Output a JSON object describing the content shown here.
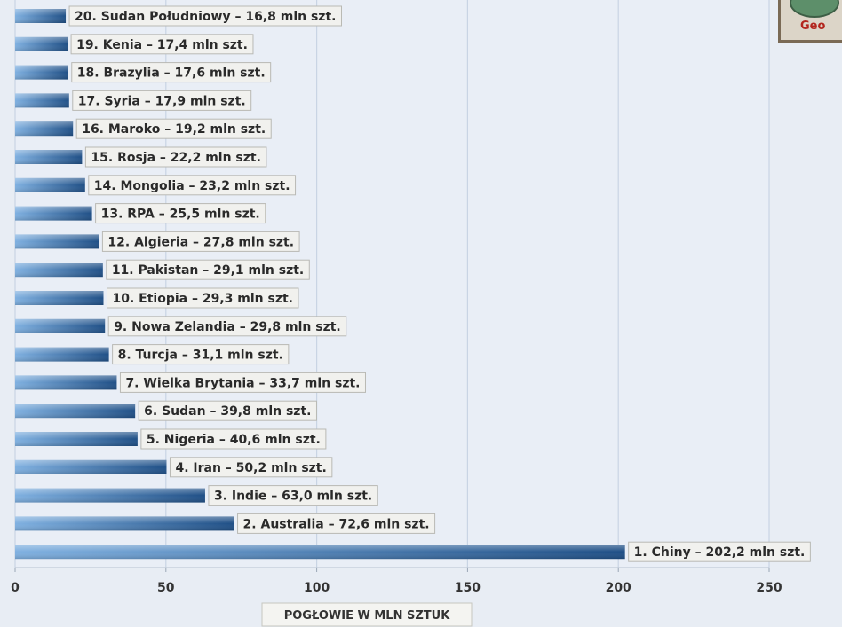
{
  "chart_data": {
    "type": "bar",
    "orientation": "horizontal",
    "categories": [
      "20. Sudan Południowy",
      "19. Kenia",
      "18. Brazylia",
      "17. Syria",
      "16. Maroko",
      "15. Rosja",
      "14. Mongolia",
      "13. RPA",
      "12. Algieria",
      "11. Pakistan",
      "10. Etiopia",
      "9. Nowa Zelandia",
      "8. Turcja",
      "7. Wielka Brytania",
      "6. Sudan",
      "5. Nigeria",
      "4. Iran",
      "3. Indie",
      "2. Australia",
      "1. Chiny"
    ],
    "values": [
      16.8,
      17.4,
      17.6,
      17.9,
      19.2,
      22.2,
      23.2,
      25.5,
      27.8,
      29.1,
      29.3,
      29.8,
      31.1,
      33.7,
      39.8,
      40.6,
      50.2,
      63.0,
      72.6,
      202.2
    ],
    "data_labels": [
      "20. Sudan Południowy – 16,8 mln szt.",
      "19. Kenia – 17,4 mln szt.",
      "18. Brazylia – 17,6 mln szt.",
      "17. Syria – 17,9 mln szt.",
      "16. Maroko – 19,2 mln szt.",
      "15. Rosja – 22,2 mln szt.",
      "14. Mongolia – 23,2 mln szt.",
      "13. RPA – 25,5 mln szt.",
      "12. Algieria – 27,8 mln szt.",
      "11. Pakistan – 29,1 mln szt.",
      "10. Etiopia – 29,3 mln szt.",
      "9. Nowa Zelandia – 29,8 mln szt.",
      "8. Turcja – 31,1 mln szt.",
      "7. Wielka Brytania – 33,7 mln szt.",
      "6. Sudan – 39,8 mln szt.",
      "5. Nigeria – 40,6 mln szt.",
      "4. Iran – 50,2 mln szt.",
      "3. Indie – 63,0 mln szt.",
      "2. Australia – 72,6 mln szt.",
      "1. Chiny – 202,2 mln szt."
    ],
    "xlabel": "POGŁOWIE W MLN SZTUK",
    "ylabel": "",
    "xlim": [
      0,
      250
    ],
    "xticks": [
      0,
      50,
      100,
      150,
      200,
      250
    ],
    "xtick_labels": [
      "0",
      "50",
      "100",
      "150",
      "200",
      "250"
    ],
    "grid": true,
    "colors": {
      "bar_dark": "#1f4f86",
      "bar_light": "#7fb0e0",
      "plot_bg": "#e9eef6",
      "grid": "#ffffff"
    }
  },
  "logo": {
    "text": "Geo"
  }
}
